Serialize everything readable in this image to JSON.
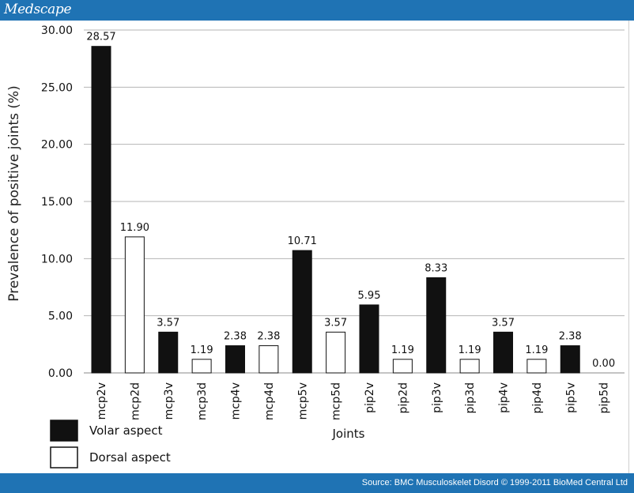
{
  "header": {
    "brand": "Medscape"
  },
  "footer": {
    "source": "Source: BMC Musculoskelet Disord © 1999-2011 BioMed Central Ltd"
  },
  "chart_data": {
    "type": "bar",
    "title": "",
    "xlabel": "Joints",
    "ylabel": "Prevalence of positive joints (%)",
    "ylim": [
      0,
      30
    ],
    "yticks": [
      "0.00",
      "5.00",
      "10.00",
      "15.00",
      "20.00",
      "25.00",
      "30.00"
    ],
    "grid": true,
    "categories": [
      "mcp2v",
      "mcp2d",
      "mcp3v",
      "mcp3d",
      "mcp4v",
      "mcp4d",
      "mcp5v",
      "mcp5d",
      "pip2v",
      "pip2d",
      "pip3v",
      "pip3d",
      "pip4v",
      "pip4d",
      "pip5v",
      "pip5d"
    ],
    "values": [
      28.57,
      11.9,
      3.57,
      1.19,
      2.38,
      2.38,
      10.71,
      3.57,
      5.95,
      1.19,
      8.33,
      1.19,
      3.57,
      1.19,
      2.38,
      0.0
    ],
    "value_labels": [
      "28.57",
      "11.90",
      "3.57",
      "1.19",
      "2.38",
      "2.38",
      "10.71",
      "3.57",
      "5.95",
      "1.19",
      "8.33",
      "1.19",
      "3.57",
      "1.19",
      "2.38",
      "0.00"
    ],
    "series_of_category": [
      "volar",
      "dorsal",
      "volar",
      "dorsal",
      "volar",
      "dorsal",
      "volar",
      "dorsal",
      "volar",
      "dorsal",
      "volar",
      "dorsal",
      "volar",
      "dorsal",
      "volar",
      "dorsal"
    ],
    "legend": {
      "placement": "bottom-left",
      "items": [
        {
          "key": "volar",
          "label": "Volar aspect",
          "color": "#111111"
        },
        {
          "key": "dorsal",
          "label": "Dorsal aspect",
          "color": "#ffffff"
        }
      ]
    }
  }
}
